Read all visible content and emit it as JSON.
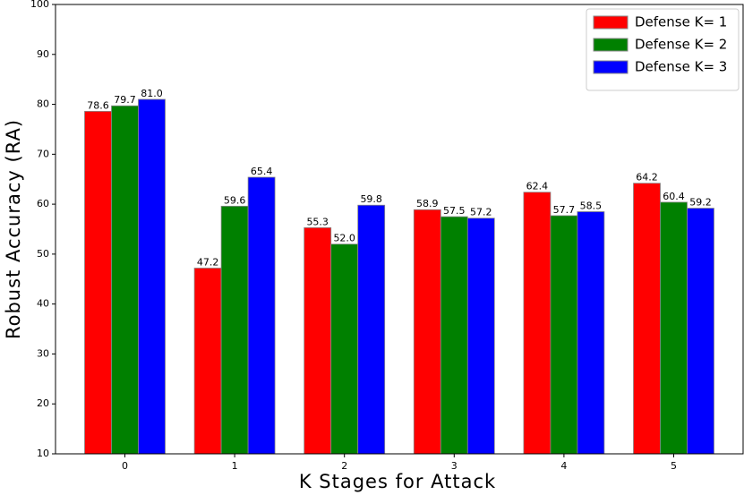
{
  "chart_data": {
    "type": "bar",
    "xlabel": "K Stages for Attack",
    "ylabel": "Robust Accuracy (RA)",
    "categories": [
      "0",
      "1",
      "2",
      "3",
      "4",
      "5"
    ],
    "series": [
      {
        "name": "Defense K= 1",
        "color": "#ff0000",
        "values": [
          78.6,
          47.2,
          55.3,
          58.9,
          62.4,
          64.2
        ],
        "value_labels": [
          "78.6",
          "47.2",
          "55.3",
          "58.9",
          "62.4",
          "64.2"
        ]
      },
      {
        "name": "Defense K= 2",
        "color": "#008000",
        "values": [
          79.7,
          59.6,
          52.0,
          57.5,
          57.7,
          60.4
        ],
        "value_labels": [
          "79.7",
          "59.6",
          "52.0",
          "57.5",
          "57.7",
          "60.4"
        ]
      },
      {
        "name": "Defense K= 3",
        "color": "#0000ff",
        "values": [
          81.0,
          65.4,
          59.8,
          57.2,
          58.5,
          59.2
        ],
        "value_labels": [
          "81.0",
          "65.4",
          "59.8",
          "57.2",
          "58.5",
          "59.2"
        ]
      }
    ],
    "ylim": [
      10,
      100
    ],
    "yticks": [
      10,
      20,
      30,
      40,
      50,
      60,
      70,
      80,
      90,
      100
    ],
    "legend": "upper right"
  }
}
